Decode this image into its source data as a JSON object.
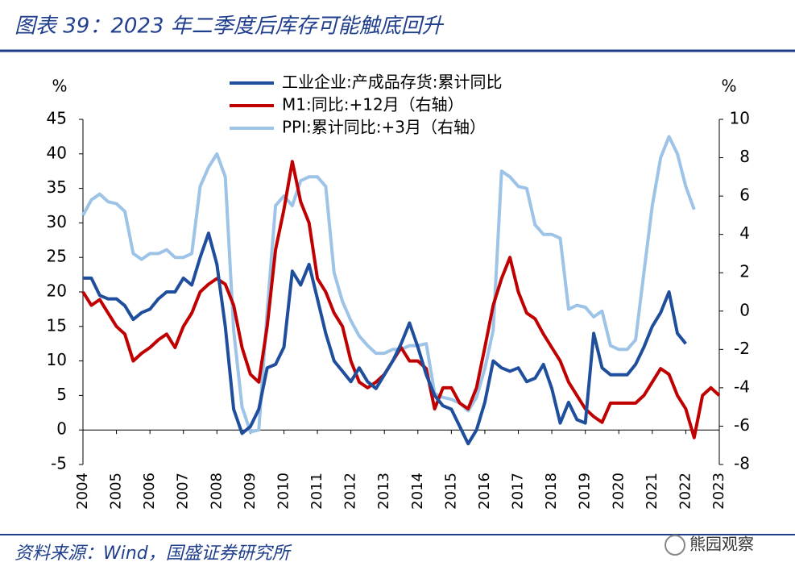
{
  "chart_data": {
    "type": "line",
    "title": "图表 39：2023 年二季度后库存可能触底回升",
    "source": "资料来源：Wind，国盛证券研究所",
    "watermark": "熊园观察",
    "y_label": "%",
    "y2_label": "%",
    "xlim": [
      2004,
      2023
    ],
    "xticks": [
      2004,
      2005,
      2006,
      2007,
      2008,
      2009,
      2010,
      2011,
      2012,
      2013,
      2014,
      2015,
      2016,
      2017,
      2018,
      2019,
      2020,
      2021,
      2022,
      2023
    ],
    "ylim": [
      -5,
      45
    ],
    "yticks": [
      45,
      40,
      35,
      30,
      25,
      20,
      15,
      10,
      5,
      0,
      -5
    ],
    "y2lim": [
      -8,
      10
    ],
    "y2ticks": [
      10,
      8,
      6,
      4,
      2,
      0,
      -2,
      -4,
      -6,
      -8
    ],
    "x": [
      2004,
      2004.25,
      2004.5,
      2004.75,
      2005,
      2005.25,
      2005.5,
      2005.75,
      2006,
      2006.25,
      2006.5,
      2006.75,
      2007,
      2007.25,
      2007.5,
      2007.75,
      2008,
      2008.25,
      2008.5,
      2008.75,
      2009,
      2009.25,
      2009.5,
      2009.75,
      2010,
      2010.25,
      2010.5,
      2010.75,
      2011,
      2011.25,
      2011.5,
      2011.75,
      2012,
      2012.25,
      2012.5,
      2012.75,
      2013,
      2013.25,
      2013.5,
      2013.75,
      2014,
      2014.25,
      2014.5,
      2014.75,
      2015,
      2015.25,
      2015.5,
      2015.75,
      2016,
      2016.25,
      2016.5,
      2016.75,
      2017,
      2017.25,
      2017.5,
      2017.75,
      2018,
      2018.25,
      2018.5,
      2018.75,
      2019,
      2019.25,
      2019.5,
      2019.75,
      2020,
      2020.25,
      2020.5,
      2020.75,
      2021,
      2021.25,
      2021.5,
      2021.75,
      2022,
      2022.25,
      2022.5,
      2022.75,
      2023
    ],
    "series": [
      {
        "name": "工业企业:产成品存货:累计同比",
        "color": "#1f4e9c",
        "axis": "y",
        "values": [
          22,
          22,
          19.5,
          19,
          19,
          18,
          16,
          17,
          17.5,
          19,
          20,
          20,
          22,
          21,
          25,
          28.5,
          24,
          15,
          3,
          -0.5,
          0.5,
          3,
          9,
          9.5,
          12,
          23,
          21,
          24,
          19,
          14,
          10,
          8.5,
          7,
          9,
          7,
          6,
          8,
          10,
          12.5,
          15.5,
          12,
          8,
          5,
          3.5,
          3,
          0.5,
          -2,
          0,
          4,
          10,
          9,
          8.5,
          9,
          7,
          7.5,
          9.5,
          6,
          1,
          4,
          1.5,
          1,
          14,
          9,
          8,
          8,
          8,
          9.5,
          12,
          15,
          17,
          20,
          14,
          12.5,
          null,
          null,
          null,
          null
        ]
      },
      {
        "name": "M1:同比:+12月（右轴）",
        "color": "#c00000",
        "axis": "y2",
        "values": [
          1.0,
          0.3,
          0.6,
          -0.1,
          -0.8,
          -1.2,
          -2.6,
          -2.2,
          -1.9,
          -1.5,
          -1.2,
          -1.9,
          -0.8,
          -0.1,
          1.0,
          1.4,
          1.7,
          1.4,
          0.3,
          -1.9,
          -3.3,
          -3.7,
          -0.8,
          3.2,
          5.3,
          7.8,
          5.7,
          4.6,
          1.7,
          1.0,
          -0.1,
          -0.8,
          -2.6,
          -3.7,
          -4.0,
          -3.7,
          -3.3,
          -2.6,
          -1.9,
          -2.6,
          -2.6,
          -3.0,
          -5.1,
          -4.0,
          -4.0,
          -4.8,
          -5.1,
          -4.0,
          -1.9,
          0.3,
          1.7,
          2.8,
          1.0,
          -0.1,
          -0.4,
          -1.2,
          -1.9,
          -2.6,
          -3.7,
          -4.4,
          -5.1,
          -5.5,
          -5.8,
          -4.8,
          -4.8,
          -4.8,
          -4.8,
          -4.4,
          -3.7,
          -3.0,
          -3.3,
          -4.4,
          -5.1,
          -6.6,
          -4.4,
          -4.0,
          -4.4
        ]
      },
      {
        "name": "PPI:累计同比:+3月（右轴）",
        "color": "#9dc3e6",
        "axis": "y2",
        "values": [
          5,
          5.8,
          6.1,
          5.7,
          5.6,
          5.2,
          3,
          2.7,
          3,
          3,
          3.2,
          2.8,
          2.8,
          3,
          6.5,
          7.5,
          8.2,
          7,
          -1,
          -5,
          -6.3,
          -6.2,
          0,
          5.5,
          6,
          5.5,
          6.8,
          7,
          7,
          6.5,
          2,
          0.5,
          -0.5,
          -1.3,
          -1.8,
          -2.2,
          -2.2,
          -2,
          -2,
          -1.8,
          -1.8,
          -1.7,
          -4.3,
          -4.5,
          -4.6,
          -4.8,
          -5.2,
          -4.5,
          -3,
          -1,
          7.3,
          7,
          6.5,
          6.4,
          4.5,
          4,
          4,
          3.8,
          0.1,
          0.3,
          0.2,
          -0.3,
          0,
          -1.8,
          -2,
          -2,
          -1.5,
          2,
          5.5,
          8,
          9.1,
          8.2,
          6.5,
          5.3,
          null,
          null,
          null
        ]
      }
    ]
  }
}
